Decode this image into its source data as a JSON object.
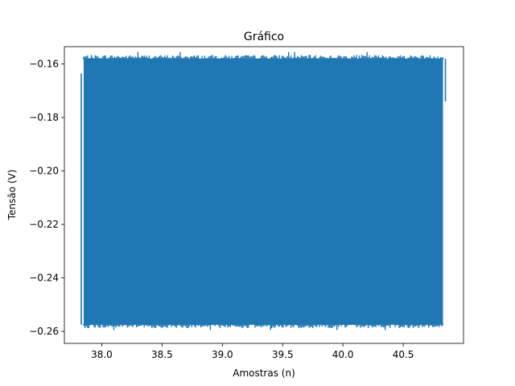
{
  "chart_data": {
    "type": "line",
    "title": "Gráfico",
    "xlabel": "Amostras (n)",
    "ylabel": "Tensão (V)",
    "xlim": [
      37.69,
      41.0
    ],
    "ylim": [
      -0.2645,
      -0.1535
    ],
    "x_ticks": [
      38.0,
      38.5,
      39.0,
      39.5,
      40.0,
      40.5
    ],
    "x_tick_labels": [
      "38.0",
      "38.5",
      "39.0",
      "39.5",
      "40.0",
      "40.5"
    ],
    "y_ticks": [
      -0.16,
      -0.18,
      -0.2,
      -0.22,
      -0.24,
      -0.26
    ],
    "y_tick_labels": [
      "−0.16",
      "−0.18",
      "−0.20",
      "−0.22",
      "−0.24",
      "−0.26"
    ],
    "grid": false,
    "series": [
      {
        "color": "#1f77b4",
        "x_range": [
          37.83,
          40.85
        ],
        "envelope_top": -0.158,
        "envelope_bottom": -0.2575,
        "max": -0.1555,
        "min": -0.2595,
        "start_y": -0.1635,
        "end_y": -0.174
      }
    ]
  }
}
